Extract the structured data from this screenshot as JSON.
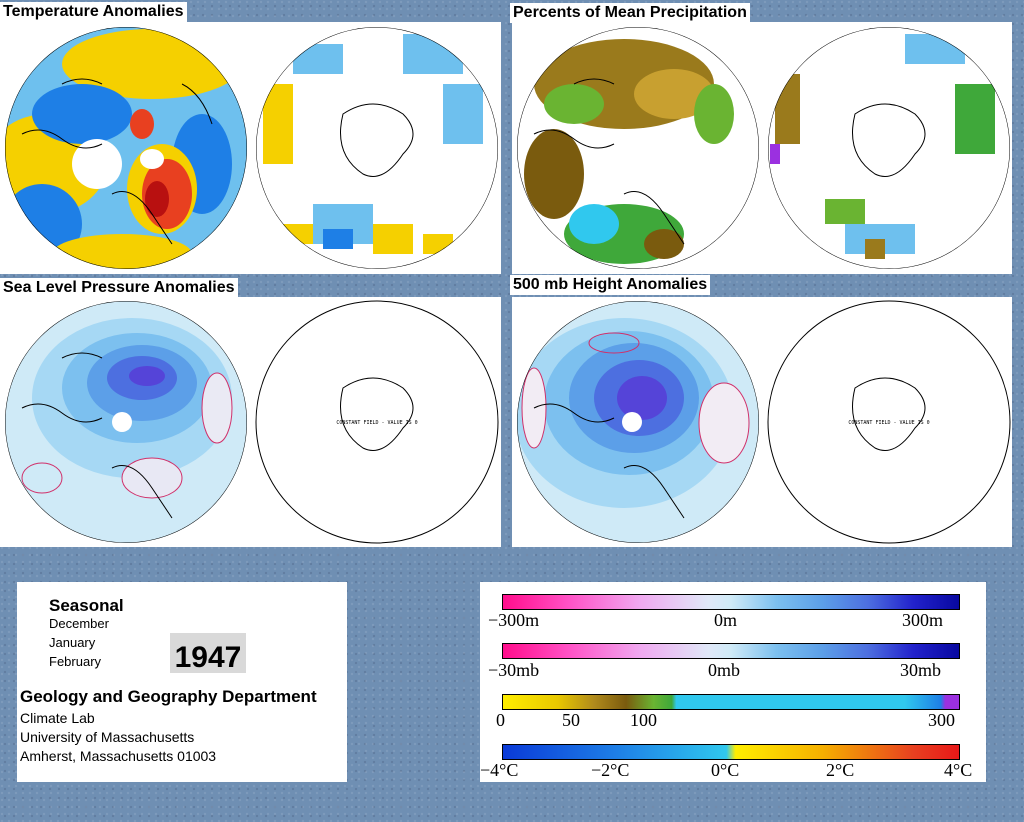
{
  "panels": {
    "temperature": {
      "title": "Temperature Anomalies"
    },
    "precipitation": {
      "title": "Percents of Mean Precipitation"
    },
    "slp": {
      "title": "Sea Level Pressure Anomalies",
      "constant_text": "CONSTANT FIELD - VALUE IS 0"
    },
    "height500": {
      "title": "500 mb Height Anomalies",
      "constant_text": "CONSTANT FIELD - VALUE IS 0"
    }
  },
  "info": {
    "season_label": "Seasonal",
    "months": [
      "December",
      "January",
      "February"
    ],
    "year": "1947",
    "department": "Geology and Geography Department",
    "address_lines": [
      "Climate Lab",
      "University of Massachusetts",
      "Amherst, Massachusetts 01003"
    ]
  },
  "legends": {
    "height": {
      "labels": [
        "−300m",
        "0m",
        "300m"
      ]
    },
    "pressure": {
      "labels": [
        "−30mb",
        "0mb",
        "30mb"
      ]
    },
    "precip": {
      "labels": [
        "0",
        "50",
        "100",
        "300"
      ]
    },
    "temp": {
      "labels": [
        "−4°C",
        "−2°C",
        "0°C",
        "2°C",
        "4°C"
      ]
    }
  },
  "colors": {
    "background": "#6f8fb3",
    "cold": "#1e7fe6",
    "cool": "#6ec0ee",
    "warm": "#f5d000",
    "hot": "#e84020",
    "height_pos": "#2222cc",
    "height_neg": "#ff0d8c",
    "precip_dry": "#7a5b0e",
    "precip_wet": "#30c8ee"
  }
}
